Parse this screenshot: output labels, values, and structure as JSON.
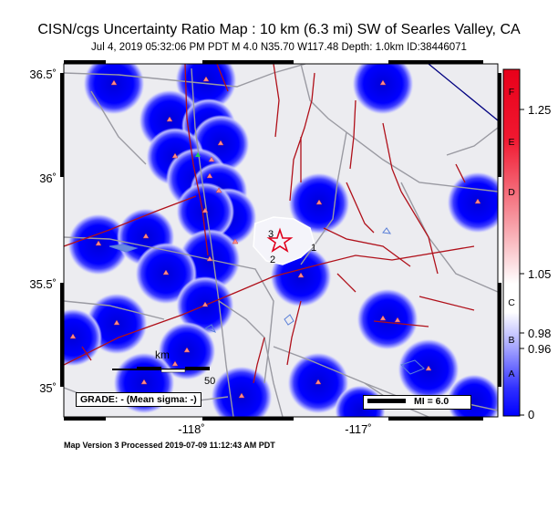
{
  "header": {
    "title": "CISN/cgs Uncertainty Ratio Map : 10 km (6.3 mi) SW of Searles Valley, CA",
    "subtitle": "Jul  4, 2019 05:32:06 PM PDT    M 4.0    N35.70 W117.48    Depth: 1.0km    ID:38446071"
  },
  "map": {
    "lat_labels": [
      "36.5˚",
      "36˚",
      "35.5˚",
      "35˚"
    ],
    "lon_labels": [
      "-118˚",
      "-117˚"
    ],
    "fault_labels": [
      "3",
      "1",
      "2"
    ],
    "scale_bar": {
      "unit": "km",
      "end_value": "50"
    },
    "grade_text": "GRADE: - (Mean sigma: -)",
    "mi_legend": "MI = 6.0",
    "epicenter": {
      "lat": 35.7,
      "lon": -117.48
    },
    "station_symbol": "triangle-icon",
    "epicenter_symbol": "star-icon"
  },
  "colorbar": {
    "letters": [
      "F",
      "E",
      "D",
      "C",
      "B",
      "A"
    ],
    "values": [
      "1.25",
      "1.05",
      "0.98",
      "0.96",
      "0"
    ],
    "colors": {
      "high": "#e0001c",
      "mid": "#ffffff",
      "low": "#0000ff"
    }
  },
  "footer": {
    "text": "Map Version 3 Processed 2019-07-09 11:12:43 AM PDT"
  }
}
